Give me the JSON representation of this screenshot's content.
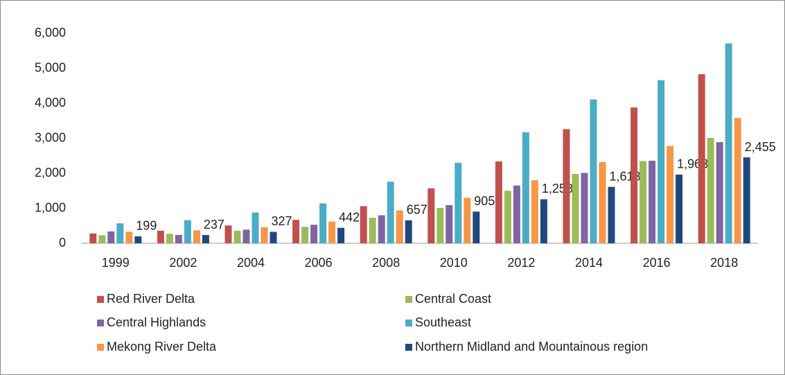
{
  "chart_data": {
    "type": "bar",
    "categories": [
      "1999",
      "2002",
      "2004",
      "2006",
      "2008",
      "2010",
      "2012",
      "2014",
      "2016",
      "2018"
    ],
    "series": [
      {
        "name": "Red River Delta",
        "color": "#c0504d",
        "values": [
          280,
          360,
          510,
          670,
          1060,
          1570,
          2340,
          3260,
          3880,
          4830
        ]
      },
      {
        "name": "Central Coast",
        "color": "#9bbb59",
        "values": [
          230,
          270,
          360,
          470,
          730,
          1010,
          1500,
          1980,
          2350,
          3010
        ]
      },
      {
        "name": "Central Highlands",
        "color": "#8064a2",
        "values": [
          340,
          240,
          390,
          530,
          800,
          1090,
          1650,
          2010,
          2360,
          2890
        ]
      },
      {
        "name": "Southeast",
        "color": "#4bacc6",
        "values": [
          570,
          660,
          880,
          1140,
          1760,
          2300,
          3170,
          4110,
          4660,
          5710
        ]
      },
      {
        "name": "Mekong River Delta",
        "color": "#f79646",
        "values": [
          330,
          370,
          460,
          620,
          940,
          1300,
          1800,
          2320,
          2780,
          3580
        ]
      },
      {
        "name": "Northern Midland and Mountainous region",
        "color": "#1f497d",
        "values": [
          199,
          237,
          327,
          442,
          657,
          905,
          1258,
          1613,
          1963,
          2455
        ],
        "value_labels": [
          "199",
          "237",
          "327",
          "442",
          "657",
          "905",
          "1,258",
          "1,613",
          "1,963",
          "2,455"
        ]
      }
    ],
    "ylim": [
      0,
      6000
    ],
    "yticks": [
      0,
      {
        "value": 1000,
        "label": "1,000"
      },
      {
        "value": 2000,
        "label": "2,000"
      },
      {
        "value": 3000,
        "label": "3,000"
      },
      {
        "value": 4000,
        "label": "4,000"
      },
      {
        "value": 5000,
        "label": "5,000"
      },
      {
        "value": 6000,
        "label": "6,000"
      }
    ],
    "grid": false,
    "legend": "bottom"
  }
}
